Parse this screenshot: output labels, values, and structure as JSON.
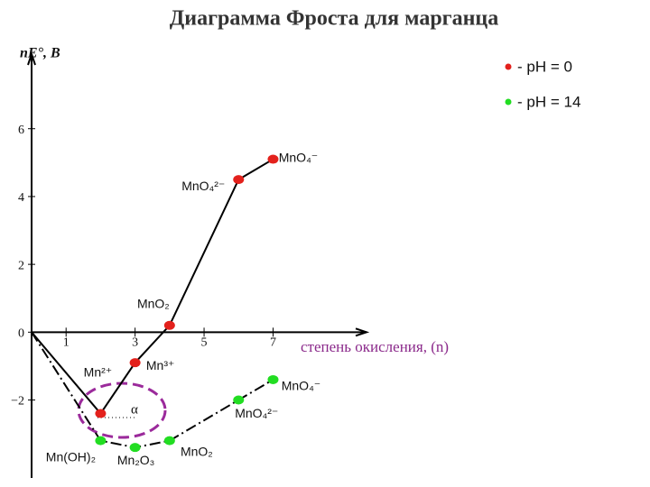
{
  "chart_data": {
    "type": "line",
    "title": "Диаграмма Фроста для марганца",
    "y_label": "nE°, В",
    "x_label": "степень окисления, (n)",
    "annotation": "α",
    "x": [
      0,
      2,
      3,
      4,
      6,
      7
    ],
    "xlim": [
      0,
      9.5
    ],
    "xticks": [
      1,
      3,
      5,
      7
    ],
    "ylim": [
      -4.3,
      8.2
    ],
    "yticks": [
      {
        "value": -2,
        "label": "−2"
      },
      0,
      2,
      4,
      6
    ],
    "legend": "top-right",
    "series": [
      {
        "name": "- pH = 0",
        "color": "#e3211c",
        "dash": "solid",
        "values": [
          0,
          -2.4,
          -0.9,
          0.2,
          4.5,
          5.1
        ],
        "point_labels": [
          null,
          "Mn²⁺",
          "Mn³⁺",
          "MnO₂",
          "MnO₄²⁻",
          "MnO₄⁻"
        ]
      },
      {
        "name": "- pH = 14",
        "color": "#22dd22",
        "dash": "dashdot",
        "values": [
          0,
          -3.2,
          -3.4,
          -3.2,
          -2.0,
          -1.4
        ],
        "point_labels": [
          null,
          "Mn(OH)₂",
          "Mn₂O₃",
          "MnO₂",
          "MnO₄²⁻",
          "MnO₄⁻"
        ]
      }
    ]
  }
}
